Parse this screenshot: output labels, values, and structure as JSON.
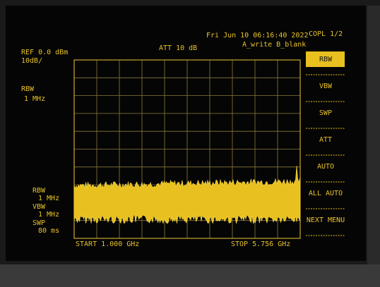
{
  "header": {
    "datetime": "Fri Jun 10 06:16:40 2022",
    "page": "COPL 1/2",
    "ref_level": "REF 0.0 dBm",
    "scale": "10dB/",
    "attenuation": "ATT 10 dB",
    "trace_mode": "A_write B_blank"
  },
  "left_panel": {
    "label": "RBW",
    "value": "1 MHz"
  },
  "settings": [
    {
      "label": "RBW",
      "value": "1 MHz"
    },
    {
      "label": "VBW",
      "value": "1 MHz"
    },
    {
      "label": "SWP",
      "value": "80 ms"
    }
  ],
  "footer": {
    "start": "START 1.000 GHz",
    "stop": "STOP 5.756 GHz"
  },
  "menu": [
    "RBW",
    "VBW",
    "SWP",
    "ATT",
    "AUTO",
    "ALL AUTO",
    "NEXT MENU"
  ]
}
